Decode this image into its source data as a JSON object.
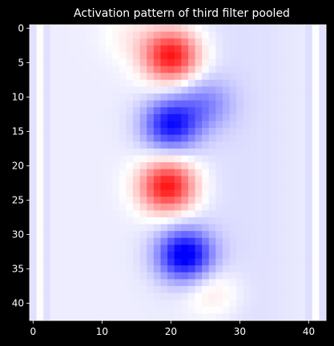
{
  "chart_data": {
    "type": "heatmap",
    "title": "Activation pattern of third filter pooled",
    "colormap": "bwr",
    "background": "#000000",
    "text_color": "#ffffff",
    "grid_size": [
      43,
      43
    ],
    "xlim": [
      0,
      42
    ],
    "ylim": [
      42,
      0
    ],
    "x_ticks": [
      0,
      10,
      20,
      30,
      40
    ],
    "y_ticks": [
      0,
      5,
      10,
      15,
      20,
      25,
      30,
      35,
      40
    ],
    "value_range": [
      -1,
      1
    ],
    "blobs": [
      {
        "sign": "positive",
        "center_x": 20,
        "center_y": 4,
        "intensity": 1.0
      },
      {
        "sign": "negative",
        "center_x": 20,
        "center_y": 14,
        "intensity": 0.85
      },
      {
        "sign": "positive",
        "center_x": 19.5,
        "center_y": 23,
        "intensity": 1.0
      },
      {
        "sign": "negative",
        "center_x": 22,
        "center_y": 33,
        "intensity": 1.0
      },
      {
        "sign": "negative",
        "center_x": 25,
        "center_y": 11,
        "intensity": 0.35
      },
      {
        "sign": "positive",
        "center_x": 26,
        "center_y": 38.5,
        "intensity": 0.2
      },
      {
        "sign": "positive",
        "center_x": 14,
        "center_y": 1,
        "intensity": 0.12
      }
    ]
  }
}
